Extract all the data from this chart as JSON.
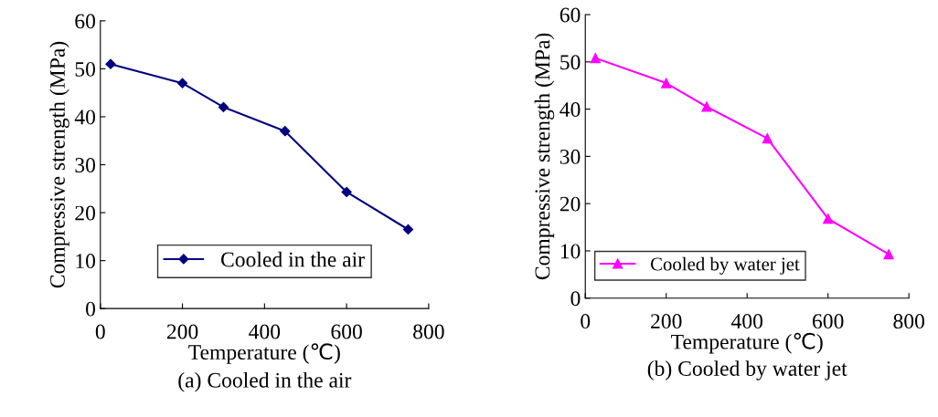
{
  "chart_data": [
    {
      "type": "line",
      "title": "(a) Cooled in the air",
      "xlabel": "Temperature (℃)",
      "ylabel": "Compressive strength (MPa)",
      "x": [
        25,
        200,
        300,
        450,
        600,
        750
      ],
      "series": [
        {
          "name": "Cooled in the air",
          "color": "#000080",
          "values": [
            51,
            47,
            42,
            37,
            24.3,
            16.5
          ]
        }
      ],
      "xlim": [
        0,
        800
      ],
      "xticks": [
        0,
        200,
        400,
        600,
        800
      ],
      "ylim": [
        0,
        60
      ],
      "yticks": [
        0,
        10,
        20,
        30,
        40,
        50,
        60
      ],
      "marker": "diamond",
      "legend": "bottom",
      "grid": false
    },
    {
      "type": "line",
      "title": "(b) Cooled by water jet",
      "xlabel": "Temperature (℃)",
      "ylabel": "Compressive strength (MPa)",
      "x": [
        25,
        200,
        300,
        450,
        600,
        750
      ],
      "series": [
        {
          "name": "Cooled by water jet",
          "color": "#ff00ff",
          "values": [
            50.8,
            45.5,
            40.5,
            33.8,
            16.8,
            9.3
          ]
        }
      ],
      "xlim": [
        0,
        800
      ],
      "xticks": [
        0,
        200,
        400,
        600,
        800
      ],
      "ylim": [
        0,
        60
      ],
      "yticks": [
        0,
        10,
        20,
        30,
        40,
        50,
        60
      ],
      "marker": "triangle",
      "legend": "bottom left",
      "grid": false
    }
  ]
}
